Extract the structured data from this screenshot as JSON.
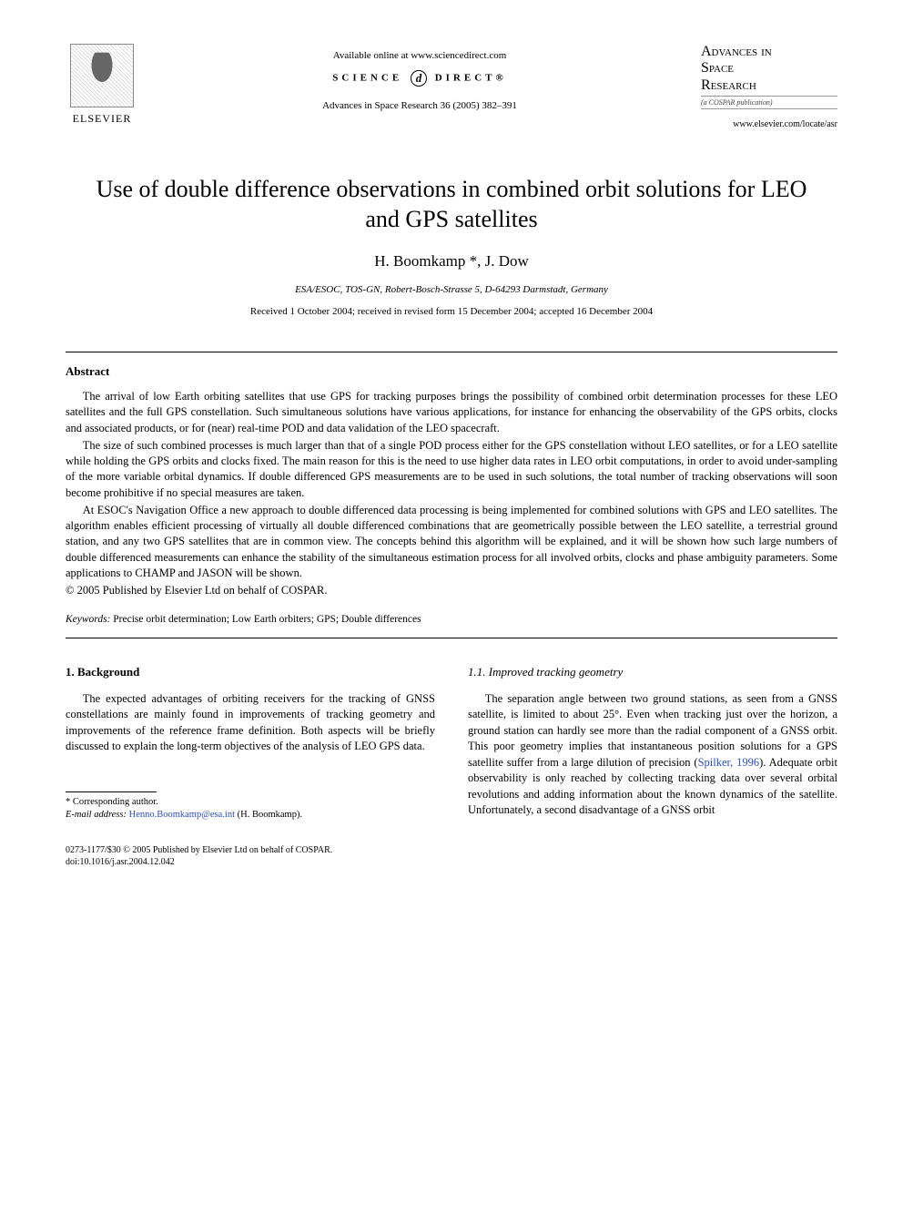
{
  "header": {
    "publisher_name": "ELSEVIER",
    "available_online": "Available online at www.sciencedirect.com",
    "sciencedirect_left": "SCIENCE",
    "sciencedirect_right": "DIRECT®",
    "sd_circle_glyph": "d",
    "citation": "Advances in Space Research 36 (2005) 382–391",
    "journal_title_l1": "Advances in",
    "journal_title_l2": "Space",
    "journal_title_l3": "Research",
    "journal_subtitle": "(a COSPAR publication)",
    "journal_url": "www.elsevier.com/locate/asr"
  },
  "article": {
    "title": "Use of double difference observations in combined orbit solutions for LEO and GPS satellites",
    "authors": "H. Boomkamp *, J. Dow",
    "affiliation": "ESA/ESOC, TOS-GN, Robert-Bosch-Strasse 5, D-64293 Darmstadt, Germany",
    "dates": "Received 1 October 2004; received in revised form 15 December 2004; accepted 16 December 2004"
  },
  "abstract": {
    "label": "Abstract",
    "p1": "The arrival of low Earth orbiting satellites that use GPS for tracking purposes brings the possibility of combined orbit determination processes for these LEO satellites and the full GPS constellation. Such simultaneous solutions have various applications, for instance for enhancing the observability of the GPS orbits, clocks and associated products, or for (near) real-time POD and data validation of the LEO spacecraft.",
    "p2": "The size of such combined processes is much larger than that of a single POD process either for the GPS constellation without LEO satellites, or for a LEO satellite while holding the GPS orbits and clocks fixed. The main reason for this is the need to use higher data rates in LEO orbit computations, in order to avoid under-sampling of the more variable orbital dynamics. If double differenced GPS measurements are to be used in such solutions, the total number of tracking observations will soon become prohibitive if no special measures are taken.",
    "p3": "At ESOC's Navigation Office a new approach to double differenced data processing is being implemented for combined solutions with GPS and LEO satellites. The algorithm enables efficient processing of virtually all double differenced combinations that are geometrically possible between the LEO satellite, a terrestrial ground station, and any two GPS satellites that are in common view. The concepts behind this algorithm will be explained, and it will be shown how such large numbers of double differenced measurements can enhance the stability of the simultaneous estimation process for all involved orbits, clocks and phase ambiguity parameters. Some applications to CHAMP and JASON will be shown.",
    "copyright": "© 2005 Published by Elsevier Ltd on behalf of COSPAR.",
    "keywords_label": "Keywords:",
    "keywords": " Precise orbit determination; Low Earth orbiters; GPS; Double differences"
  },
  "body": {
    "section1_heading": "1. Background",
    "section1_p1": "The expected advantages of orbiting receivers for the tracking of GNSS constellations are mainly found in improvements of tracking geometry and improvements of the reference frame definition. Both aspects will be briefly discussed to explain the long-term objectives of the analysis of LEO GPS data.",
    "section11_heading": "1.1. Improved tracking geometry",
    "section11_p1a": "The separation angle between two ground stations, as seen from a GNSS satellite, is limited to about 25°. Even when tracking just over the horizon, a ground station can hardly see more than the radial component of a GNSS orbit. This poor geometry implies that instantaneous position solutions for a GPS satellite suffer from a large dilution of precision (",
    "section11_cite": "Spilker, 1996",
    "section11_p1b": "). Adequate orbit observability is only reached by collecting tracking data over several orbital revolutions and adding information about the known dynamics of the satellite. Unfortunately, a second disadvantage of a GNSS orbit"
  },
  "footnote": {
    "corresponding": "* Corresponding author.",
    "email_label": "E-mail address:",
    "email": "Henno.Boomkamp@esa.int",
    "email_tail": " (H. Boomkamp)."
  },
  "footer": {
    "line1": "0273-1177/$30 © 2005 Published by Elsevier Ltd on behalf of COSPAR.",
    "line2": "doi:10.1016/j.asr.2004.12.042"
  }
}
